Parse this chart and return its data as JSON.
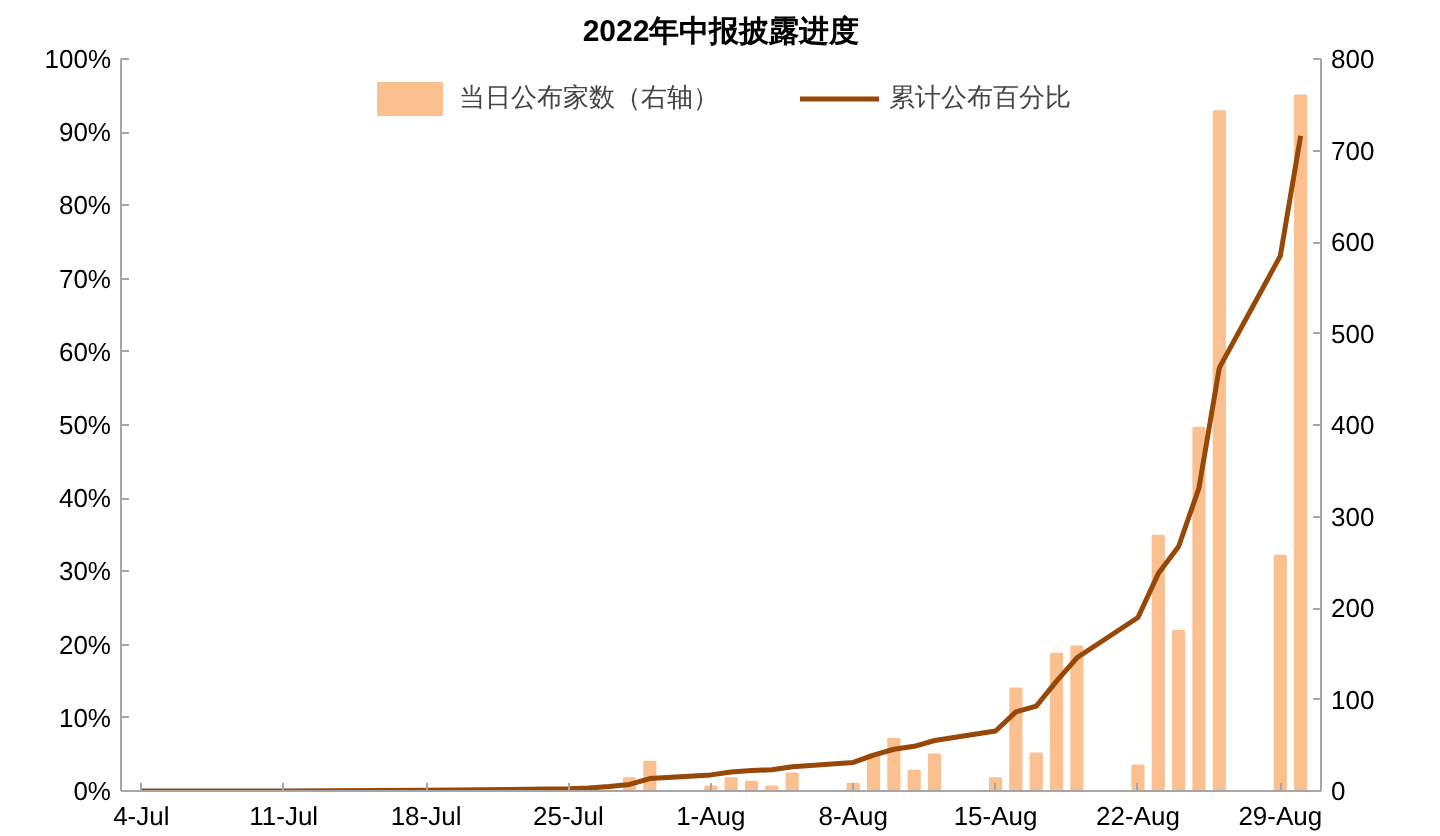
{
  "chart_data": {
    "type": "bar",
    "title": "2022年中报披露进度",
    "series": [
      {
        "name": "当日公布家数（右轴）",
        "axis": "y2",
        "color": "#fac090",
        "x": [
          "2022-07-28",
          "2022-07-29",
          "2022-08-01",
          "2022-08-02",
          "2022-08-03",
          "2022-08-04",
          "2022-08-05",
          "2022-08-08",
          "2022-08-09",
          "2022-08-10",
          "2022-08-11",
          "2022-08-12",
          "2022-08-15",
          "2022-08-16",
          "2022-08-17",
          "2022-08-18",
          "2022-08-19",
          "2022-08-22",
          "2022-08-23",
          "2022-08-24",
          "2022-08-25",
          "2022-08-26",
          "2022-08-29",
          "2022-08-30"
        ],
        "values": [
          14,
          32,
          5,
          14,
          10,
          5,
          19,
          8,
          40,
          57,
          22,
          40,
          14,
          112,
          41,
          150,
          158,
          28,
          279,
          175,
          397,
          743,
          257,
          760
        ]
      },
      {
        "name": "累计公布百分比",
        "type": "line",
        "axis": "y",
        "color": "#974706",
        "x": [
          "2022-07-04",
          "2022-07-11",
          "2022-07-18",
          "2022-07-25",
          "2022-07-26",
          "2022-07-27",
          "2022-07-28",
          "2022-07-29",
          "2022-08-01",
          "2022-08-02",
          "2022-08-03",
          "2022-08-04",
          "2022-08-05",
          "2022-08-08",
          "2022-08-09",
          "2022-08-10",
          "2022-08-11",
          "2022-08-12",
          "2022-08-15",
          "2022-08-16",
          "2022-08-17",
          "2022-08-18",
          "2022-08-19",
          "2022-08-22",
          "2022-08-23",
          "2022-08-24",
          "2022-08-25",
          "2022-08-26",
          "2022-08-29",
          "2022-08-30"
        ],
        "values": [
          0,
          0,
          0.1,
          0.3,
          0.4,
          0.6,
          0.9,
          1.7,
          2.2,
          2.6,
          2.8,
          2.9,
          3.3,
          3.9,
          4.9,
          5.7,
          6.1,
          6.9,
          8.2,
          10.8,
          11.6,
          15,
          18.2,
          23.7,
          29.7,
          33.4,
          41.4,
          57.8,
          73.1,
          89.5
        ]
      }
    ],
    "xlim": [
      "2022-07-03",
      "2022-08-31"
    ],
    "xticks": [
      {
        "value": "2022-07-04",
        "label": "4-Jul"
      },
      {
        "value": "2022-07-11",
        "label": "11-Jul"
      },
      {
        "value": "2022-07-18",
        "label": "18-Jul"
      },
      {
        "value": "2022-07-25",
        "label": "25-Jul"
      },
      {
        "value": "2022-08-01",
        "label": "1-Aug"
      },
      {
        "value": "2022-08-08",
        "label": "8-Aug"
      },
      {
        "value": "2022-08-15",
        "label": "15-Aug"
      },
      {
        "value": "2022-08-22",
        "label": "22-Aug"
      },
      {
        "value": "2022-08-29",
        "label": "29-Aug"
      }
    ],
    "ylim": [
      0,
      100
    ],
    "yticks": [
      {
        "value": 0,
        "label": "0%"
      },
      {
        "value": 10,
        "label": "10%"
      },
      {
        "value": 20,
        "label": "20%"
      },
      {
        "value": 30,
        "label": "30%"
      },
      {
        "value": 40,
        "label": "40%"
      },
      {
        "value": 50,
        "label": "50%"
      },
      {
        "value": 60,
        "label": "60%"
      },
      {
        "value": 70,
        "label": "70%"
      },
      {
        "value": 80,
        "label": "80%"
      },
      {
        "value": 90,
        "label": "90%"
      },
      {
        "value": 100,
        "label": "100%"
      }
    ],
    "y2lim": [
      0,
      800
    ],
    "y2ticks": [
      0,
      100,
      200,
      300,
      400,
      500,
      600,
      700,
      800
    ],
    "legend": "top",
    "grid": false
  }
}
